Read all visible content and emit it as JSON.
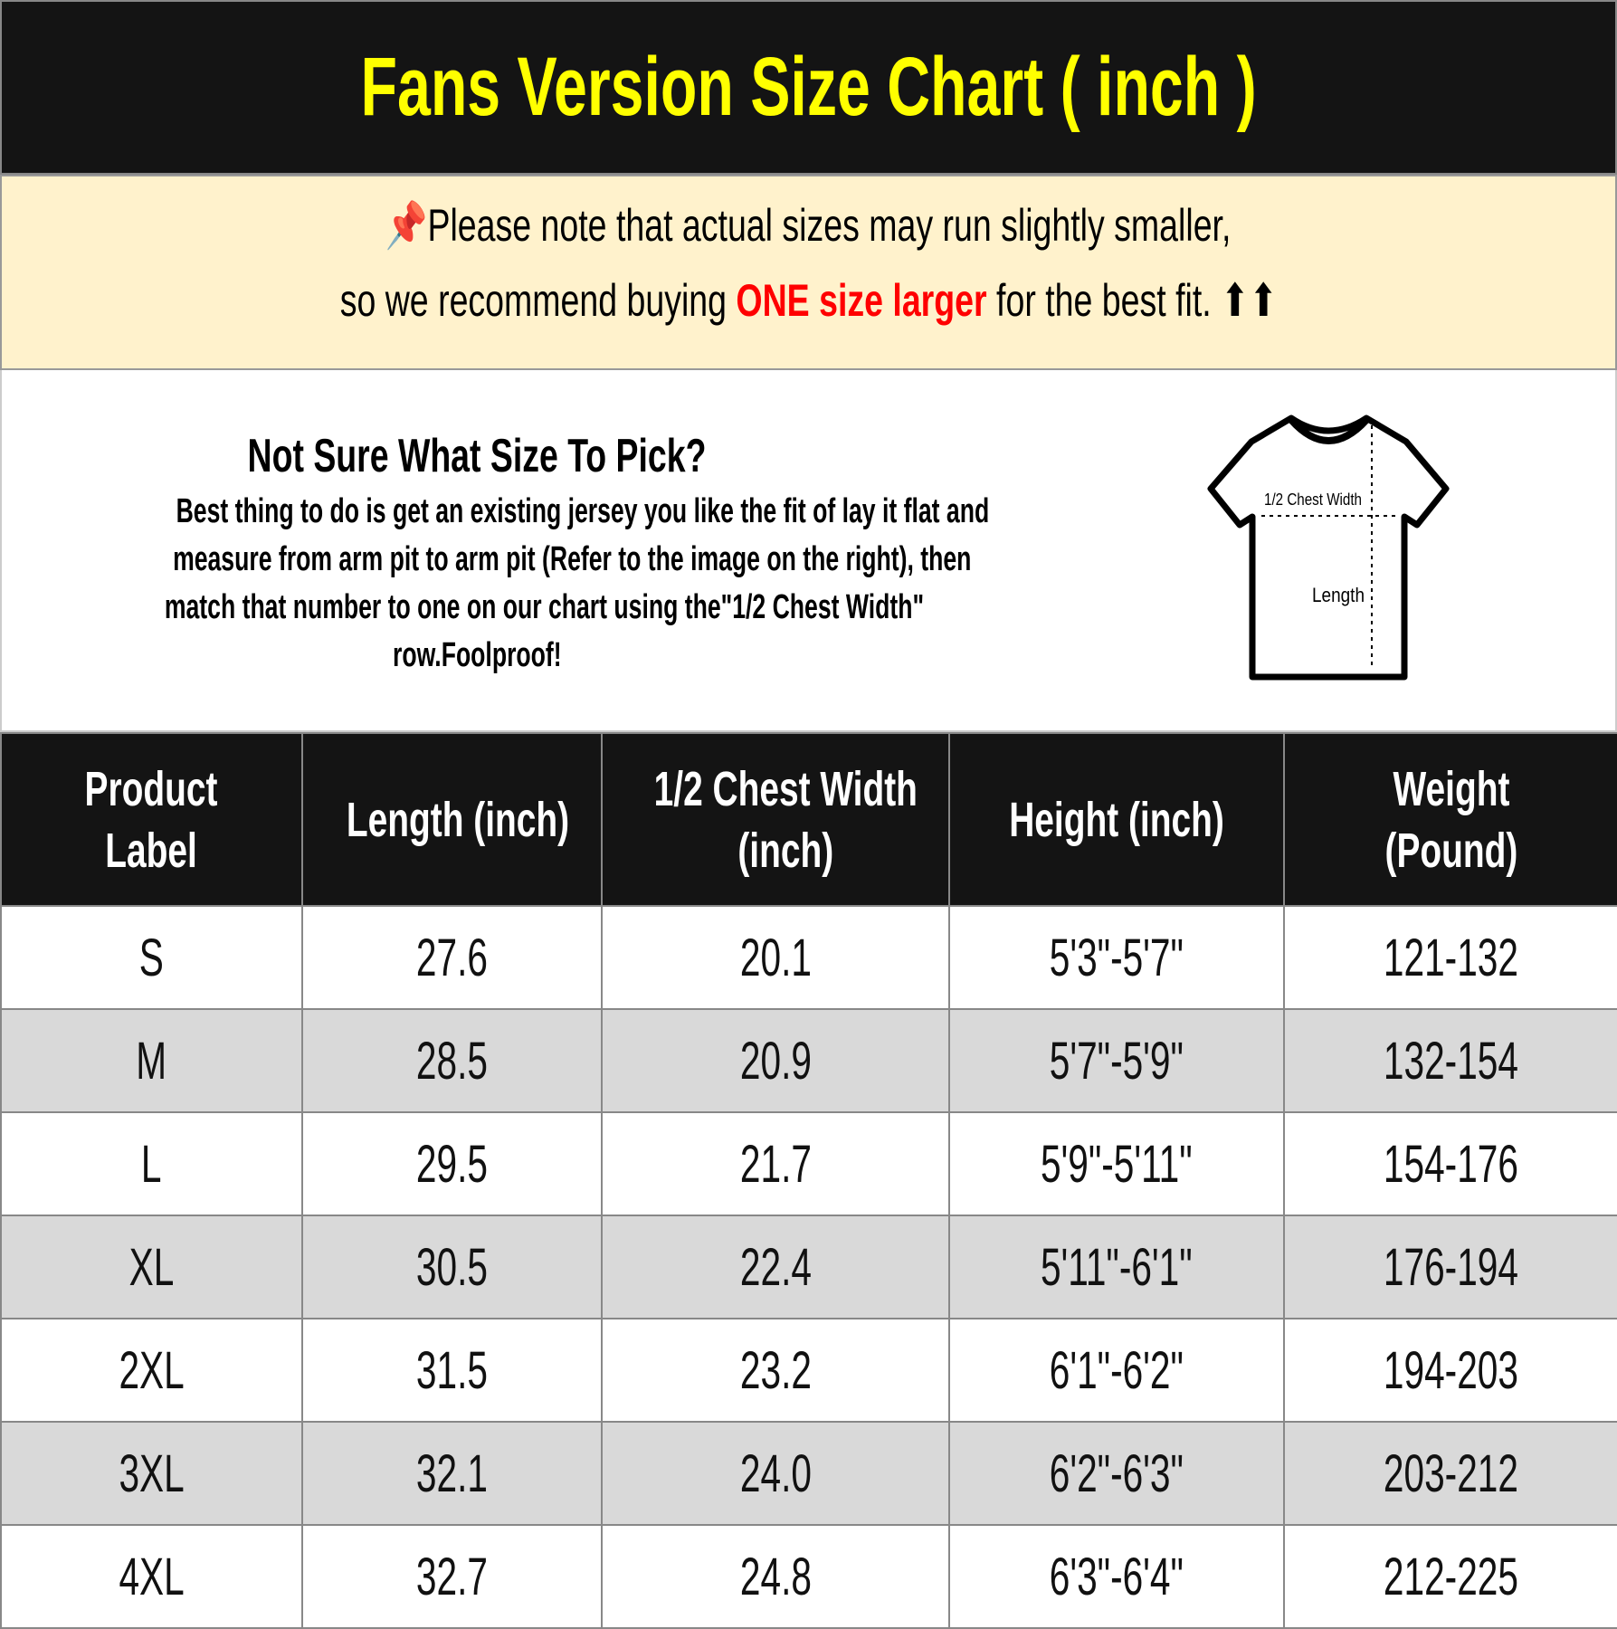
{
  "title": "Fans Version Size Chart ( inch )",
  "note": {
    "pin_icon": "pushpin-icon",
    "line1": "Please note that actual sizes may run slightly smaller,",
    "line2_pre": "so we recommend buying ",
    "line2_red": "ONE size larger",
    "line2_post": " for the best fit. ⬆⬆",
    "accent": "#ff0000"
  },
  "info": {
    "heading": "Not Sure What Size To Pick?",
    "lines": [
      "Best thing to do is get an existing jersey you like the fit of lay it flat and",
      "measure from arm pit to arm pit (Refer to the image on the right), then",
      "match that number to one on our chart using the\"1/2 Chest Width\"",
      "row.Foolproof!"
    ],
    "diagram": {
      "chest_label": "1/2 Chest Width",
      "length_label": "Length"
    }
  },
  "table": {
    "headers": [
      [
        "Product",
        "Label"
      ],
      [
        "Length (inch)"
      ],
      [
        "1/2 Chest Width",
        "(inch)"
      ],
      [
        "Height (inch)"
      ],
      [
        "Weight",
        "(Pound)"
      ]
    ],
    "rows": [
      [
        "S",
        "27.6",
        "20.1",
        "5'3\"-5'7\"",
        "121-132"
      ],
      [
        "M",
        "28.5",
        "20.9",
        "5'7\"-5'9\"",
        "132-154"
      ],
      [
        "L",
        "29.5",
        "21.7",
        "5'9\"-5'11\"",
        "154-176"
      ],
      [
        "XL",
        "30.5",
        "22.4",
        "5'11\"-6'1\"",
        "176-194"
      ],
      [
        "2XL",
        "31.5",
        "23.2",
        "6'1\"-6'2\"",
        "194-203"
      ],
      [
        "3XL",
        "32.1",
        "24.0",
        "6'2\"-6'3\"",
        "203-212"
      ],
      [
        "4XL",
        "32.7",
        "24.8",
        "6'3\"-6'4\"",
        "212-225"
      ]
    ]
  }
}
